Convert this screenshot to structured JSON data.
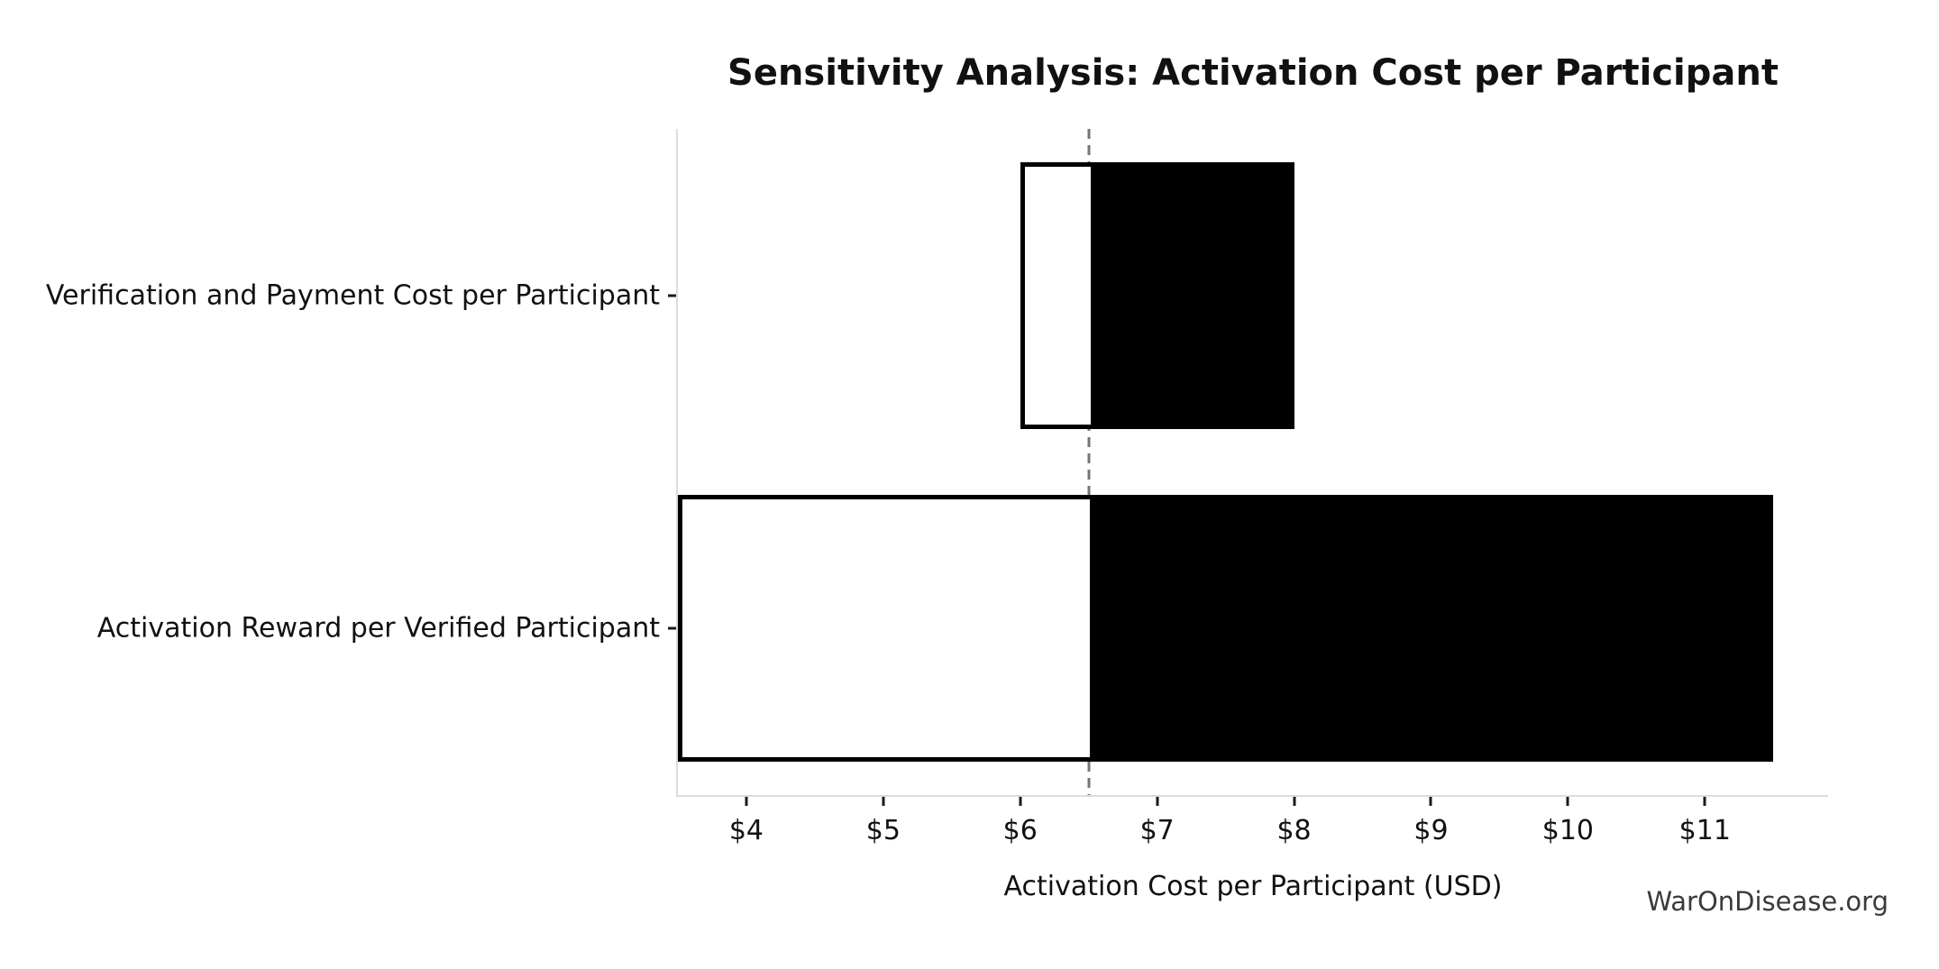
{
  "watermark": "WarOnDisease.org",
  "chart_data": {
    "type": "bar",
    "subtype": "tornado",
    "orientation": "horizontal",
    "title": "Sensitivity Analysis: Activation Cost per Participant",
    "xlabel": "Activation Cost per Participant (USD)",
    "ylabel": "",
    "baseline_value": 6.5,
    "xlim": [
      3.5,
      11.9
    ],
    "xticks": [
      4,
      5,
      6,
      7,
      8,
      9,
      10,
      11
    ],
    "xtick_labels": [
      "$4",
      "$5",
      "$6",
      "$7",
      "$8",
      "$9",
      "$10",
      "$11"
    ],
    "categories": [
      "Verification and Payment Cost per Participant",
      "Activation Reward per Verified Participant"
    ],
    "rows": [
      {
        "label": "Verification and Payment Cost per Participant",
        "low": 6.0,
        "high": 8.0
      },
      {
        "label": "Activation Reward per Verified Participant",
        "low": 3.5,
        "high": 11.5
      }
    ],
    "grid": false,
    "legend": false,
    "bar_height_fraction": 0.8,
    "colors": {
      "fill_below_baseline": "#ffffff",
      "fill_above_baseline": "#000000",
      "bar_edge": "#000000",
      "baseline_line": "#757575",
      "spine": "#dcdcdc",
      "tick": "#1a1a1a",
      "text": "#111111",
      "watermark_text": "#3a3a3a"
    }
  }
}
